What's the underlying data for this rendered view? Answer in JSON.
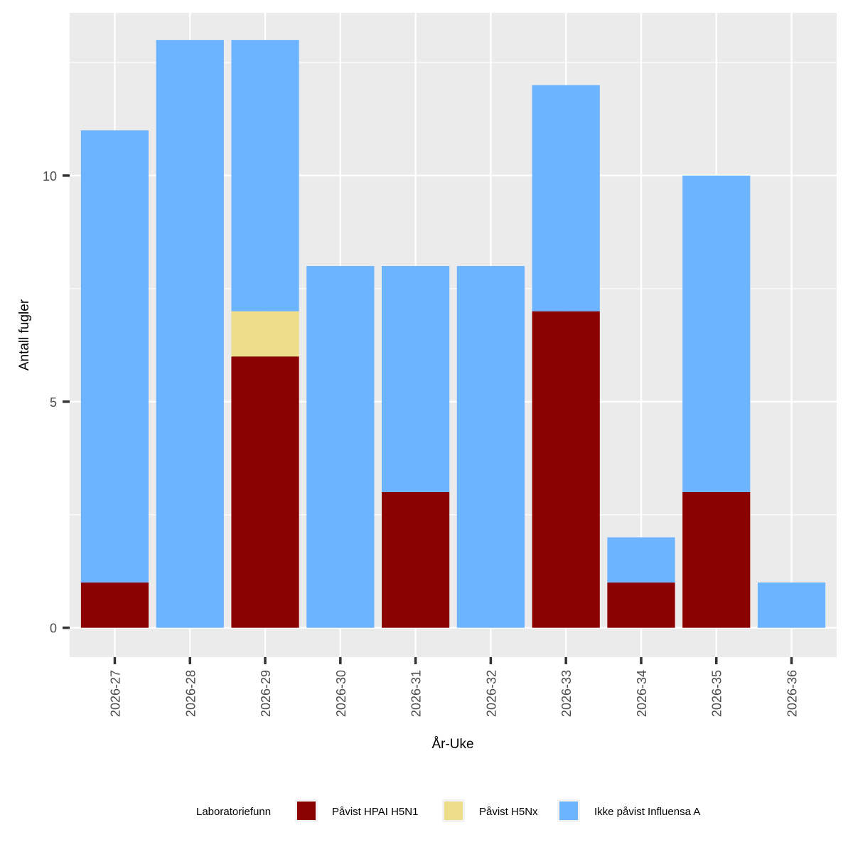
{
  "chart_data": {
    "type": "bar",
    "stacked": true,
    "xlabel": "År-Uke",
    "ylabel": "Antall fugler",
    "ylim": [
      -0.65,
      13.6
    ],
    "yticks": [
      0,
      5,
      10
    ],
    "grid": true,
    "legend_position": "bottom",
    "categories": [
      "2026-27",
      "2026-28",
      "2026-29",
      "2026-30",
      "2026-31",
      "2026-32",
      "2026-33",
      "2026-34",
      "2026-35",
      "2026-36"
    ],
    "series": [
      {
        "name": "Påvist HPAI H5N1",
        "color": "#8b0000",
        "values": [
          1,
          0,
          6,
          0,
          3,
          0,
          7,
          1,
          3,
          0
        ]
      },
      {
        "name": "Påvist H5Nx",
        "color": "#eedd8a",
        "values": [
          0,
          0,
          1,
          0,
          0,
          0,
          0,
          0,
          0,
          0
        ]
      },
      {
        "name": "Ikke påvist Influensa A",
        "color": "#6cb4ff",
        "values": [
          10,
          13,
          6,
          8,
          5,
          8,
          5,
          1,
          7,
          1
        ]
      }
    ],
    "legend": {
      "title": "Laboratoriefunn"
    }
  },
  "colors": {
    "panel_background": "#ebebeb",
    "grid_line": "#ffffff",
    "tick_mark": "#333333"
  }
}
